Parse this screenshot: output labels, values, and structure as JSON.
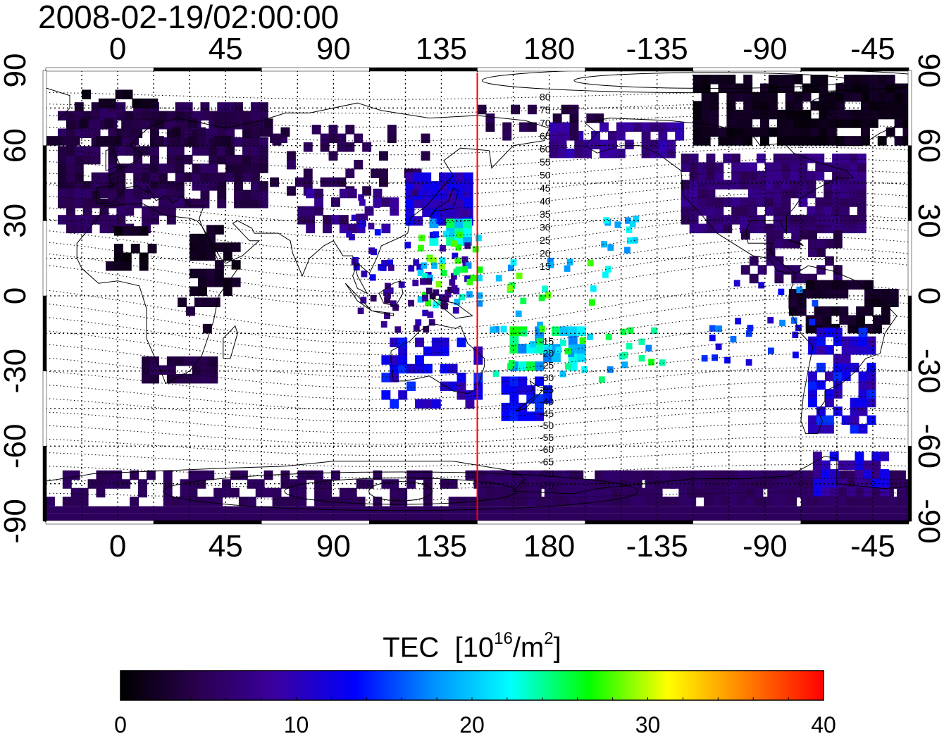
{
  "title": "2008-02-19/02:00:00",
  "map": {
    "lon_range": [
      -30,
      330
    ],
    "lat_range": [
      -90,
      90
    ],
    "lon_tick_values": [
      0,
      45,
      90,
      135,
      180,
      225,
      270,
      315
    ],
    "lon_tick_labels": [
      "0",
      "45",
      "90",
      "135",
      "180",
      "-135",
      "-90",
      "-45"
    ],
    "lat_tick_values": [
      90,
      60,
      30,
      0,
      -30,
      -60,
      -90
    ],
    "lat_tick_labels": [
      "90",
      "60",
      "30",
      "0",
      "-30",
      "-60",
      "-90"
    ],
    "grid": "dotted every 15 degrees",
    "marker_line_lon": 150,
    "marker_line_color": "#ff0000",
    "geomag_lat_labels": [
      "80",
      "75",
      "70",
      "65",
      "60",
      "55",
      "50",
      "45",
      "40",
      "35",
      "30",
      "25",
      "20",
      "15",
      "-15",
      "-20",
      "-25",
      "-30",
      "-35",
      "-40",
      "-45",
      "-50",
      "-55",
      "-60",
      "-65",
      "-70",
      "-75"
    ]
  },
  "colorbar": {
    "label_main": "TEC",
    "label_open": "[10",
    "label_exp": "16",
    "label_unit": "/m",
    "label_exp2": "2",
    "label_close": "]",
    "range": [
      0,
      40
    ],
    "tick_values": [
      0,
      10,
      20,
      30,
      40
    ],
    "tick_labels": [
      "0",
      "10",
      "20",
      "30",
      "40"
    ],
    "colors": [
      "#000000",
      "#2a0050",
      "#3a00a0",
      "#0000ff",
      "#0090ff",
      "#00ffff",
      "#00ff00",
      "#ffff00",
      "#ff8000",
      "#ff0000"
    ]
  }
}
